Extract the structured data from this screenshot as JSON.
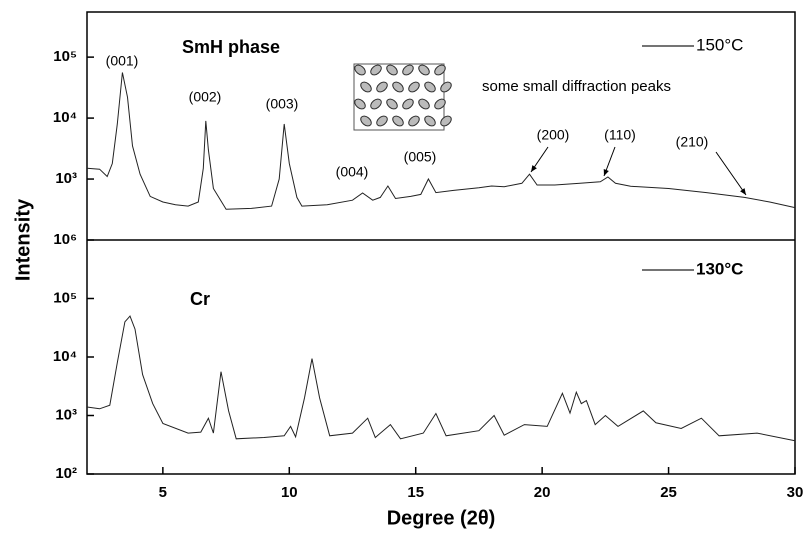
{
  "chart_data": [
    {
      "type": "line",
      "panel_label": "SmH phase",
      "note": "some small diffraction peaks",
      "ylabel": "Intensity",
      "log_y": true,
      "xlim": [
        2,
        30
      ],
      "ylim": [
        100,
        550000
      ],
      "yticks": [
        {
          "value": 1000,
          "label": "10³"
        },
        {
          "value": 10000,
          "label": "10⁴"
        },
        {
          "value": 100000,
          "label": "10⁵"
        }
      ],
      "annotations": [
        "(001)",
        "(002)",
        "(003)",
        "(004)",
        "(005)",
        "(200)",
        "(110)",
        "(210)"
      ],
      "series": [
        {
          "name": "150°C",
          "color": "#222222",
          "x": [
            2,
            2.5,
            2.8,
            3.0,
            3.2,
            3.4,
            3.6,
            3.8,
            4.1,
            4.5,
            5,
            5.5,
            6,
            6.4,
            6.6,
            6.7,
            6.8,
            7.0,
            7.5,
            8.5,
            9.3,
            9.6,
            9.8,
            10.0,
            10.3,
            10.5,
            11.5,
            12.5,
            12.9,
            13.3,
            13.6,
            13.9,
            14.2,
            14.8,
            15.2,
            15.5,
            15.8,
            16.5,
            17.5,
            18,
            18.5,
            19.2,
            19.5,
            19.8,
            20.5,
            21.5,
            22.3,
            22.6,
            22.9,
            23.5,
            25,
            26.5,
            28,
            29,
            30
          ],
          "values": [
            1500,
            1450,
            1100,
            1800,
            8000,
            56000,
            22000,
            3500,
            1200,
            520,
            420,
            380,
            360,
            420,
            1500,
            9000,
            3000,
            700,
            320,
            330,
            360,
            1000,
            8000,
            1800,
            500,
            360,
            380,
            450,
            590,
            450,
            500,
            770,
            480,
            520,
            560,
            1000,
            600,
            650,
            720,
            770,
            750,
            850,
            1200,
            800,
            800,
            850,
            900,
            1080,
            850,
            760,
            700,
            600,
            500,
            420,
            340
          ]
        }
      ]
    },
    {
      "type": "line",
      "panel_label": "Cr",
      "xlabel": "Degree (2θ)",
      "log_y": true,
      "xlim": [
        2,
        30
      ],
      "ylim": [
        100,
        1000000
      ],
      "xticks": [
        5,
        10,
        15,
        20,
        25,
        30
      ],
      "yticks": [
        {
          "value": 100,
          "label": "10²"
        },
        {
          "value": 1000,
          "label": "10³"
        },
        {
          "value": 10000,
          "label": "10⁴"
        },
        {
          "value": 100000,
          "label": "10⁵"
        },
        {
          "value": 1000000,
          "label": "10⁶"
        }
      ],
      "series": [
        {
          "name": "130°C",
          "color": "#222222",
          "x": [
            2,
            2.5,
            2.9,
            3.2,
            3.5,
            3.7,
            3.9,
            4.2,
            4.6,
            5,
            6,
            6.5,
            6.8,
            7.0,
            7.3,
            7.6,
            7.9,
            9,
            9.8,
            10.05,
            10.25,
            10.6,
            10.9,
            11.2,
            11.6,
            12.5,
            13.1,
            13.4,
            14,
            14.4,
            15.3,
            15.8,
            16.2,
            17.5,
            18.1,
            18.5,
            19.3,
            20.2,
            20.8,
            21.1,
            21.35,
            21.55,
            21.75,
            22.1,
            22.5,
            23,
            24,
            24.5,
            25.5,
            26.3,
            27,
            28.5,
            30
          ],
          "values": [
            1400,
            1300,
            1500,
            8000,
            40000,
            50000,
            30000,
            5000,
            1600,
            730,
            500,
            520,
            900,
            500,
            5600,
            1200,
            400,
            420,
            450,
            650,
            430,
            2000,
            9400,
            2000,
            450,
            500,
            900,
            420,
            700,
            400,
            500,
            1080,
            450,
            550,
            1000,
            460,
            700,
            650,
            2400,
            1100,
            2500,
            1600,
            1800,
            700,
            1000,
            650,
            1200,
            750,
            600,
            900,
            450,
            500,
            370
          ]
        }
      ]
    }
  ]
}
